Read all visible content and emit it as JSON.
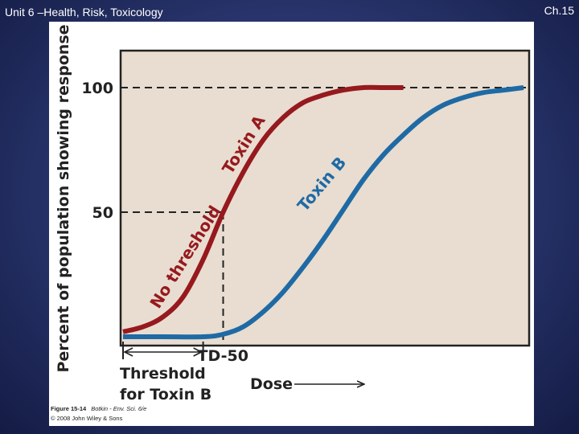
{
  "slide": {
    "title": "Unit 6 –Health, Risk, Toxicology",
    "chapter": "Ch.15"
  },
  "figure": {
    "caption_label": "Figure 15-14",
    "caption_source": "Botkin - Env. Sci. 6/e",
    "copyright": "© 2008 John Wiley & Sons"
  },
  "chart_data": {
    "type": "line",
    "ylabel": "Percent of population showing response",
    "xlabel": "Dose",
    "y_ticks": [
      "100",
      "50"
    ],
    "ylim": [
      0,
      100
    ],
    "xlim": [
      0,
      10
    ],
    "grid": false,
    "legend": "none",
    "background": "#e8ddd0",
    "series": [
      {
        "name": "Toxin A",
        "label": "Toxin A",
        "curve_label": "No threshold",
        "color": "#96191e",
        "x": [
          0,
          0.5,
          1,
          1.5,
          2,
          2.5,
          3,
          3.5,
          4,
          4.5,
          5,
          5.5,
          6,
          6.5,
          7
        ],
        "values": [
          2,
          4,
          8,
          16,
          31,
          50,
          66,
          79,
          88,
          94,
          97,
          99,
          100,
          100,
          100
        ]
      },
      {
        "name": "Toxin B",
        "label": "Toxin B",
        "color": "#1f6aa5",
        "x": [
          0,
          1,
          2,
          2.5,
          3,
          3.5,
          4,
          4.5,
          5,
          5.5,
          6,
          6.5,
          7,
          7.5,
          8,
          8.5,
          9,
          9.5,
          10
        ],
        "values": [
          0,
          0,
          0,
          1,
          4,
          10,
          18,
          28,
          39,
          51,
          63,
          73,
          81,
          88,
          93,
          96,
          98,
          99,
          100
        ]
      }
    ],
    "annotations": {
      "td50": "TD-50",
      "td50_dose": 2.5,
      "threshold_label": [
        "Threshold",
        "for Toxin B"
      ],
      "threshold_dose": 2
    }
  }
}
